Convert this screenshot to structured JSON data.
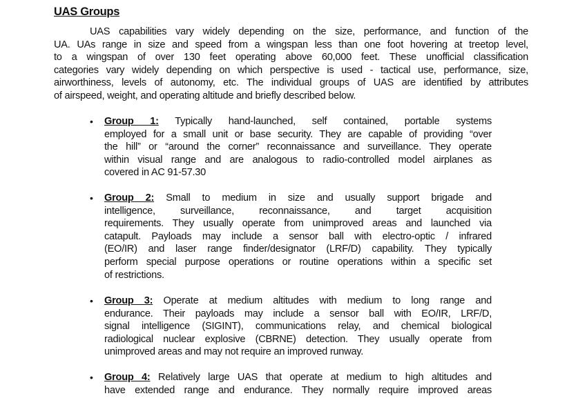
{
  "section": {
    "title": "UAS Groups",
    "intro_lines": [
      "UAS capabilities vary widely depending on the size, performance, and function of the",
      "UA.  UAs range in size and speed from a wingspan less than one foot hovering at treetop level,",
      "to a wingspan of over 130 feet operating above 60,000 feet.  These unofficial classification",
      "categories vary widely depending on which perspective is used - tactical use, performance, size,",
      "airworthiness, levels of autonomy, etc.  The individual groups of UAS are identified by attributes",
      "of airspeed, weight, and operating altitude and briefly described below."
    ]
  },
  "groups": [
    {
      "label": "Group 1:",
      "lines": [
        "Typically hand-launched, self contained, portable systems",
        "employed for a small unit or base security. They are capable of providing “over",
        "the hill” or “around the corner” reconnaissance and surveillance.  They operate",
        "within visual range and are analogous to radio-controlled model airplanes as",
        "covered in AC 91-57.30"
      ]
    },
    {
      "label": "Group 2:",
      "lines": [
        "Small to medium in size and usually support brigade and",
        "intelligence, surveillance, reconnaissance, and target acquisition",
        "requirements.  They usually operate from unimproved areas and launched via",
        "catapult. Payloads may include a sensor ball with electro-optic / infrared",
        "(EO/IR) and laser range finder/designator (LRF/D) capability.  They typically",
        "perform special purpose operations or routine operations within a specific set",
        "of restrictions."
      ]
    },
    {
      "label": "Group 3:",
      "lines": [
        "Operate at medium altitudes with medium to long range and",
        "endurance. Their payloads may include a sensor ball with EO/IR, LRF/D,",
        "signal intelligence (SIGINT), communications relay, and chemical biological",
        "radiological nuclear explosive (CBRNE) detection. They usually operate from",
        "unimproved areas and may not require an improved runway."
      ]
    },
    {
      "label": "Group 4:",
      "continues": true,
      "lines": [
        "Relatively large UAS that operate at medium to high altitudes and",
        "have extended range and endurance.  They normally require improved areas"
      ]
    }
  ]
}
